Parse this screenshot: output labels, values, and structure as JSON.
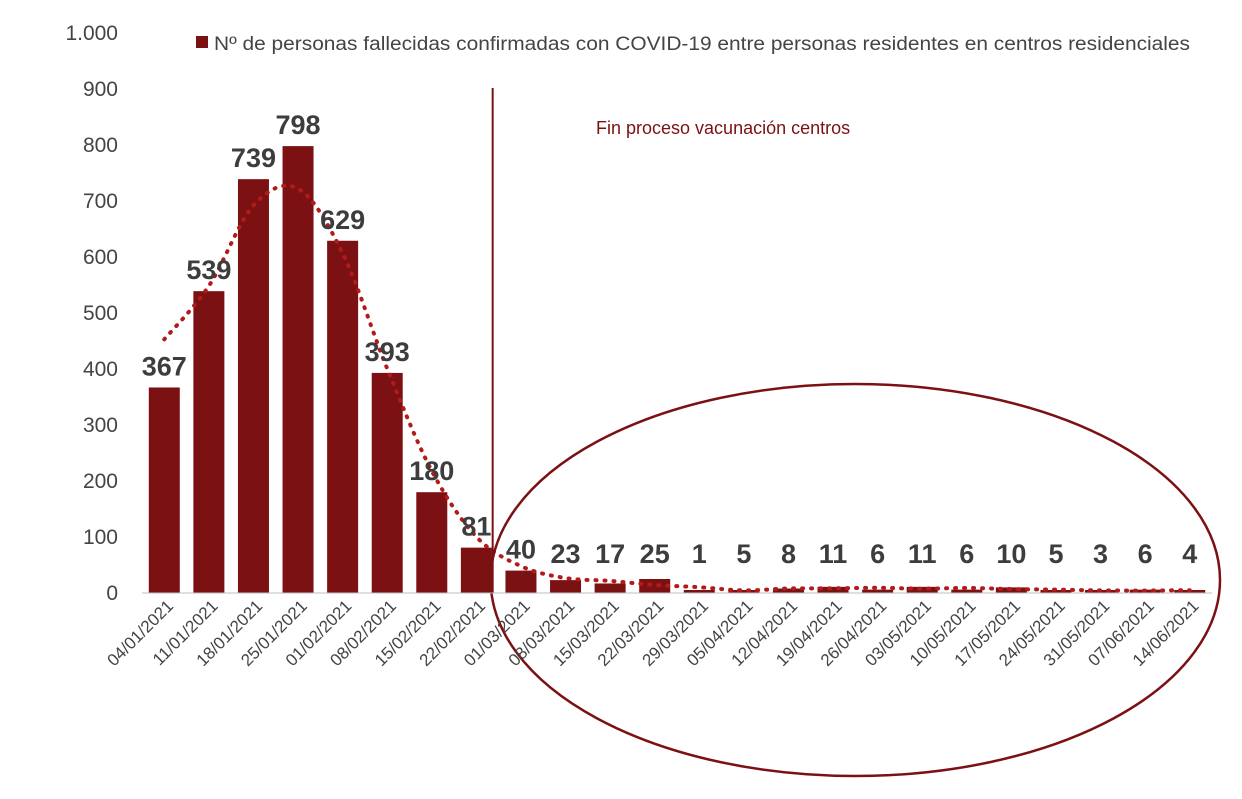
{
  "chart_data": {
    "type": "bar",
    "title": "",
    "xlabel": "",
    "ylabel": "",
    "ylim": [
      0,
      1000
    ],
    "yticks": [
      0,
      100,
      200,
      300,
      400,
      500,
      600,
      700,
      800,
      900,
      1000
    ],
    "ytick_labels": [
      "0",
      "100",
      "200",
      "300",
      "400",
      "500",
      "600",
      "700",
      "800",
      "900",
      "1.000"
    ],
    "grid": false,
    "legend_position": "top",
    "categories": [
      "04/01/2021",
      "11/01/2021",
      "18/01/2021",
      "25/01/2021",
      "01/02/2021",
      "08/02/2021",
      "15/02/2021",
      "22/02/2021",
      "01/03/2021",
      "08/03/2021",
      "15/03/2021",
      "22/03/2021",
      "29/03/2021",
      "05/04/2021",
      "12/04/2021",
      "19/04/2021",
      "26/04/2021",
      "03/05/2021",
      "10/05/2021",
      "17/05/2021",
      "24/05/2021",
      "31/05/2021",
      "07/06/2021",
      "14/06/2021"
    ],
    "series": [
      {
        "name": "Nº de personas fallecidas confirmadas con COVID-19 entre personas residentes en centros residenciales",
        "color": "#7b1113",
        "values": [
          367,
          539,
          739,
          798,
          629,
          393,
          180,
          81,
          40,
          23,
          17,
          25,
          1,
          5,
          8,
          11,
          6,
          11,
          6,
          10,
          5,
          3,
          6,
          4
        ],
        "labels": [
          "367",
          "539",
          "739",
          "798",
          "629",
          "393",
          "180",
          "81",
          "40",
          "23",
          "17",
          "25",
          "1",
          "5",
          "8",
          "11",
          "6",
          "11",
          "6",
          "10",
          "5",
          "3",
          "6",
          "4"
        ]
      }
    ],
    "trendline": {
      "style": "dotted",
      "color": "#b31b1b"
    },
    "annotations": [
      {
        "text": "Fin proceso vacunación centros",
        "at_category": "01/03/2021",
        "color": "#7b1113"
      }
    ],
    "highlight_ellipse": {
      "from_category": "01/03/2021",
      "to_category": "14/06/2021",
      "color": "#7b1113"
    }
  }
}
